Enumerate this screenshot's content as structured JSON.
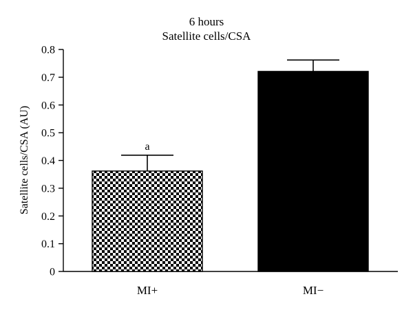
{
  "chart_data": {
    "type": "bar",
    "title": "6 hours",
    "subtitle": "Satellite cells/CSA",
    "xlabel": "",
    "ylabel": "Satellite cells/CSA (AU)",
    "ylim": [
      0,
      0.8
    ],
    "yticks": [
      "0",
      "0.1",
      "0.2",
      "0.3",
      "0.4",
      "0.5",
      "0.6",
      "0.7",
      "0.8"
    ],
    "categories": [
      "MI+",
      "MI−"
    ],
    "values": [
      0.362,
      0.721
    ],
    "errors": [
      0.057,
      0.041
    ],
    "bar_fills": [
      "checkerboard",
      "solid-black"
    ],
    "annotations": [
      "a",
      ""
    ],
    "grid": false,
    "legend": "none"
  }
}
